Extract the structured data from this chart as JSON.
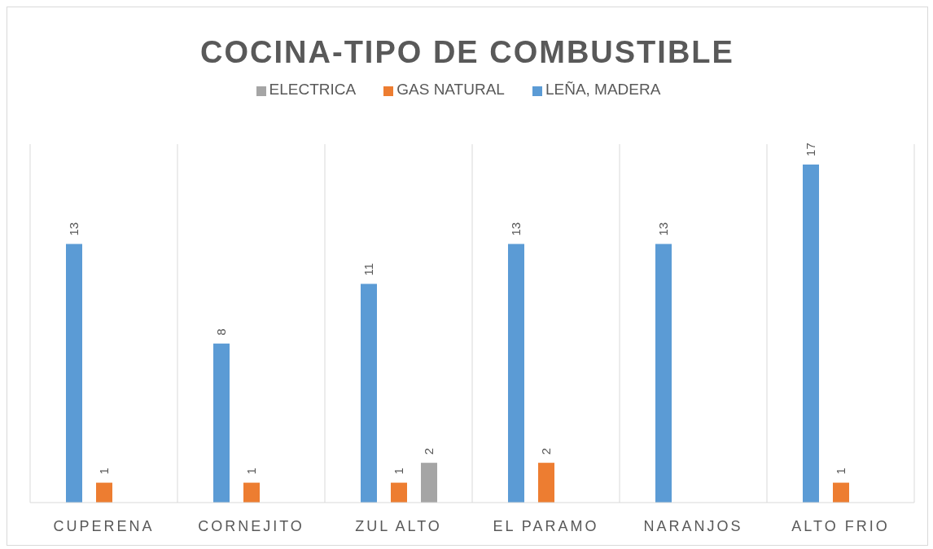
{
  "chart_data": {
    "type": "bar",
    "title": "COCINA-TIPO DE COMBUSTIBLE",
    "categories": [
      "CUPERENA",
      "CORNEJITO",
      "ZUL ALTO",
      "EL PARAMO",
      "NARANJOS",
      "ALTO FRIO"
    ],
    "series": [
      {
        "name": "LEÑA, MADERA",
        "color": "#5b9bd5",
        "values": [
          13,
          8,
          11,
          13,
          13,
          17
        ]
      },
      {
        "name": "GAS NATURAL",
        "color": "#ed7d31",
        "values": [
          1,
          1,
          1,
          2,
          null,
          1
        ]
      },
      {
        "name": "ELECTRICA",
        "color": "#a5a5a5",
        "values": [
          null,
          null,
          2,
          null,
          null,
          null
        ]
      }
    ],
    "data_labels": true,
    "grid": "x",
    "legend": "top"
  }
}
